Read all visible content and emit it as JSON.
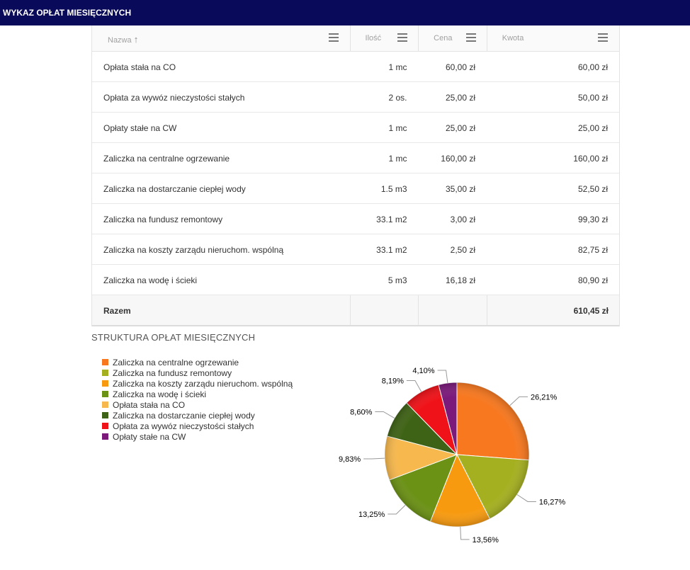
{
  "header": {
    "title": "WYKAZ OPŁAT MIESIĘCZNYCH"
  },
  "table": {
    "columns": [
      "Nazwa",
      "Ilość",
      "Cena",
      "Kwota"
    ],
    "sort_indicator": "↑",
    "rows": [
      {
        "name": "Opłata stała na CO",
        "qty": "1 mc",
        "price": "60,00 zł",
        "amount": "60,00 zł"
      },
      {
        "name": "Opłata za wywóz nieczystości stałych",
        "qty": "2 os.",
        "price": "25,00 zł",
        "amount": "50,00 zł"
      },
      {
        "name": "Opłaty stałe na CW",
        "qty": "1 mc",
        "price": "25,00 zł",
        "amount": "25,00 zł"
      },
      {
        "name": "Zaliczka na centralne ogrzewanie",
        "qty": "1 mc",
        "price": "160,00 zł",
        "amount": "160,00 zł"
      },
      {
        "name": "Zaliczka na dostarczanie ciepłej wody",
        "qty": "1.5 m3",
        "price": "35,00 zł",
        "amount": "52,50 zł"
      },
      {
        "name": "Zaliczka na fundusz remontowy",
        "qty": "33.1 m2",
        "price": "3,00 zł",
        "amount": "99,30 zł"
      },
      {
        "name": "Zaliczka na koszty zarządu nieruchom. wspólną",
        "qty": "33.1 m2",
        "price": "2,50 zł",
        "amount": "82,75 zł"
      },
      {
        "name": "Zaliczka na wodę i ścieki",
        "qty": "5 m3",
        "price": "16,18 zł",
        "amount": "80,90 zł"
      }
    ],
    "total": {
      "label": "Razem",
      "amount": "610,45 zł"
    }
  },
  "structure": {
    "title": "STRUKTURA OPŁAT MIESIĘCZNYCH"
  },
  "chart_data": {
    "type": "pie",
    "title": "STRUKTURA OPŁAT MIESIĘCZNYCH",
    "legend_position": "left",
    "slices": [
      {
        "name": "Zaliczka na centralne ogrzewanie",
        "value": 26.21,
        "label": "26,21%",
        "color": "#f7781f"
      },
      {
        "name": "Zaliczka na fundusz remontowy",
        "value": 16.27,
        "label": "16,27%",
        "color": "#a5b020"
      },
      {
        "name": "Zaliczka na koszty zarządu nieruchom. wspólną",
        "value": 13.56,
        "label": "13,56%",
        "color": "#f79a10"
      },
      {
        "name": "Zaliczka na wodę i ścieki",
        "value": 13.25,
        "label": "13,25%",
        "color": "#6b9115"
      },
      {
        "name": "Opłata stała na CO",
        "value": 9.83,
        "label": "9,83%",
        "color": "#f7b84d"
      },
      {
        "name": "Zaliczka na dostarczanie ciepłej wody",
        "value": 8.6,
        "label": "8,60%",
        "color": "#3f6316"
      },
      {
        "name": "Opłata za wywóz nieczystości stałych",
        "value": 8.19,
        "label": "8,19%",
        "color": "#ef1218"
      },
      {
        "name": "Opłaty stałe na CW",
        "value": 4.1,
        "label": "4,10%",
        "color": "#7b1a7b"
      }
    ]
  }
}
